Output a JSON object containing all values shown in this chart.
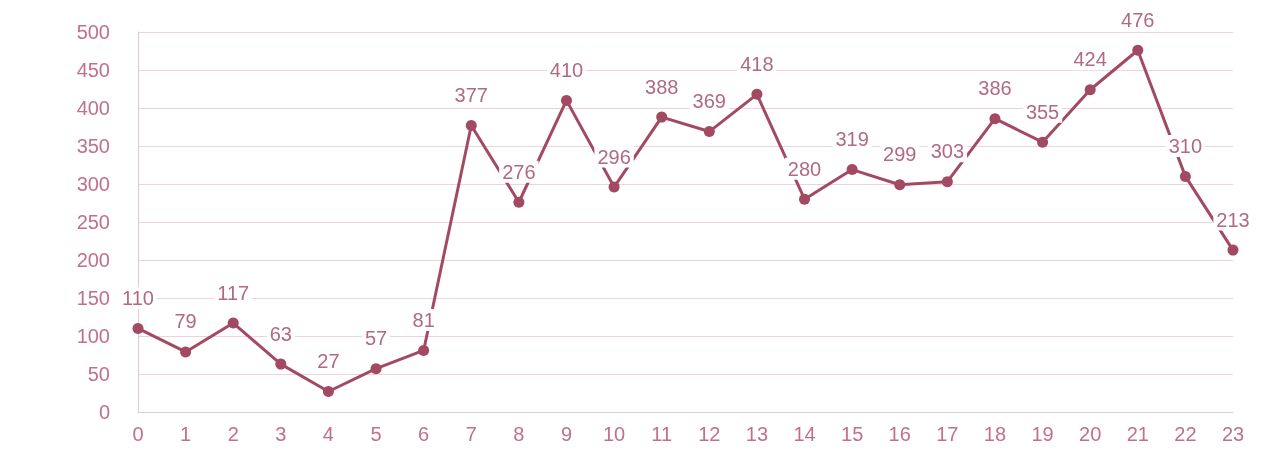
{
  "chart_data": {
    "type": "line",
    "x": [
      0,
      1,
      2,
      3,
      4,
      5,
      6,
      7,
      8,
      9,
      10,
      11,
      12,
      13,
      14,
      15,
      16,
      17,
      18,
      19,
      20,
      21,
      22,
      23
    ],
    "values": [
      110,
      79,
      117,
      63,
      27,
      57,
      81,
      377,
      276,
      410,
      296,
      388,
      369,
      418,
      280,
      319,
      299,
      303,
      386,
      355,
      424,
      476,
      310,
      213
    ],
    "color": "#a34a63",
    "xlim": [
      0,
      23
    ],
    "xticks": [
      0,
      1,
      2,
      3,
      4,
      5,
      6,
      7,
      8,
      9,
      10,
      11,
      12,
      13,
      14,
      15,
      16,
      17,
      18,
      19,
      20,
      21,
      22,
      23
    ],
    "ylim": [
      0,
      500
    ],
    "yticks": [
      0,
      50,
      100,
      150,
      200,
      250,
      300,
      350,
      400,
      450,
      500
    ],
    "grid": "y",
    "marker": "circle",
    "line_style": "solid",
    "data_labels": true
  }
}
